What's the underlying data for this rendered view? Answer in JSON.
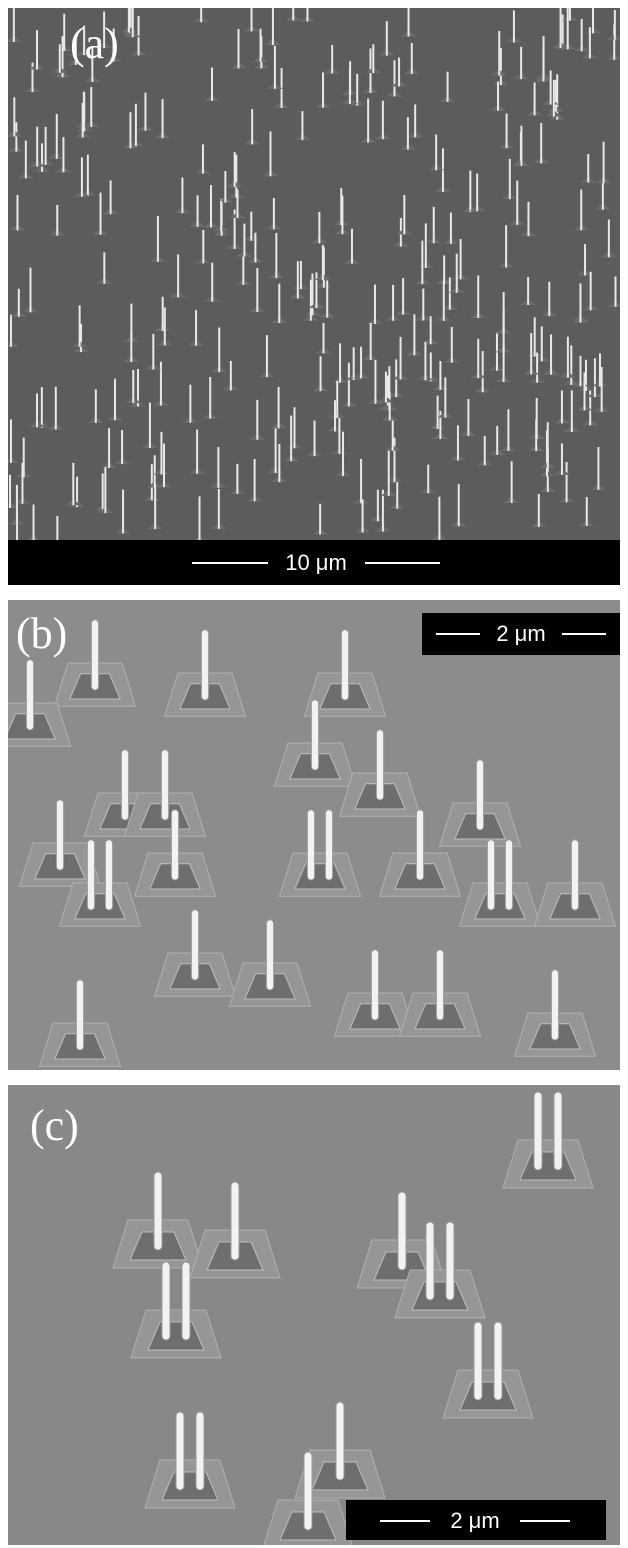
{
  "panels": [
    {
      "label": "(a)",
      "scale_bar": "10 μm"
    },
    {
      "label": "(b)",
      "scale_bar": "2 μm"
    },
    {
      "label": "(c)",
      "scale_bar": "2 μm"
    }
  ]
}
